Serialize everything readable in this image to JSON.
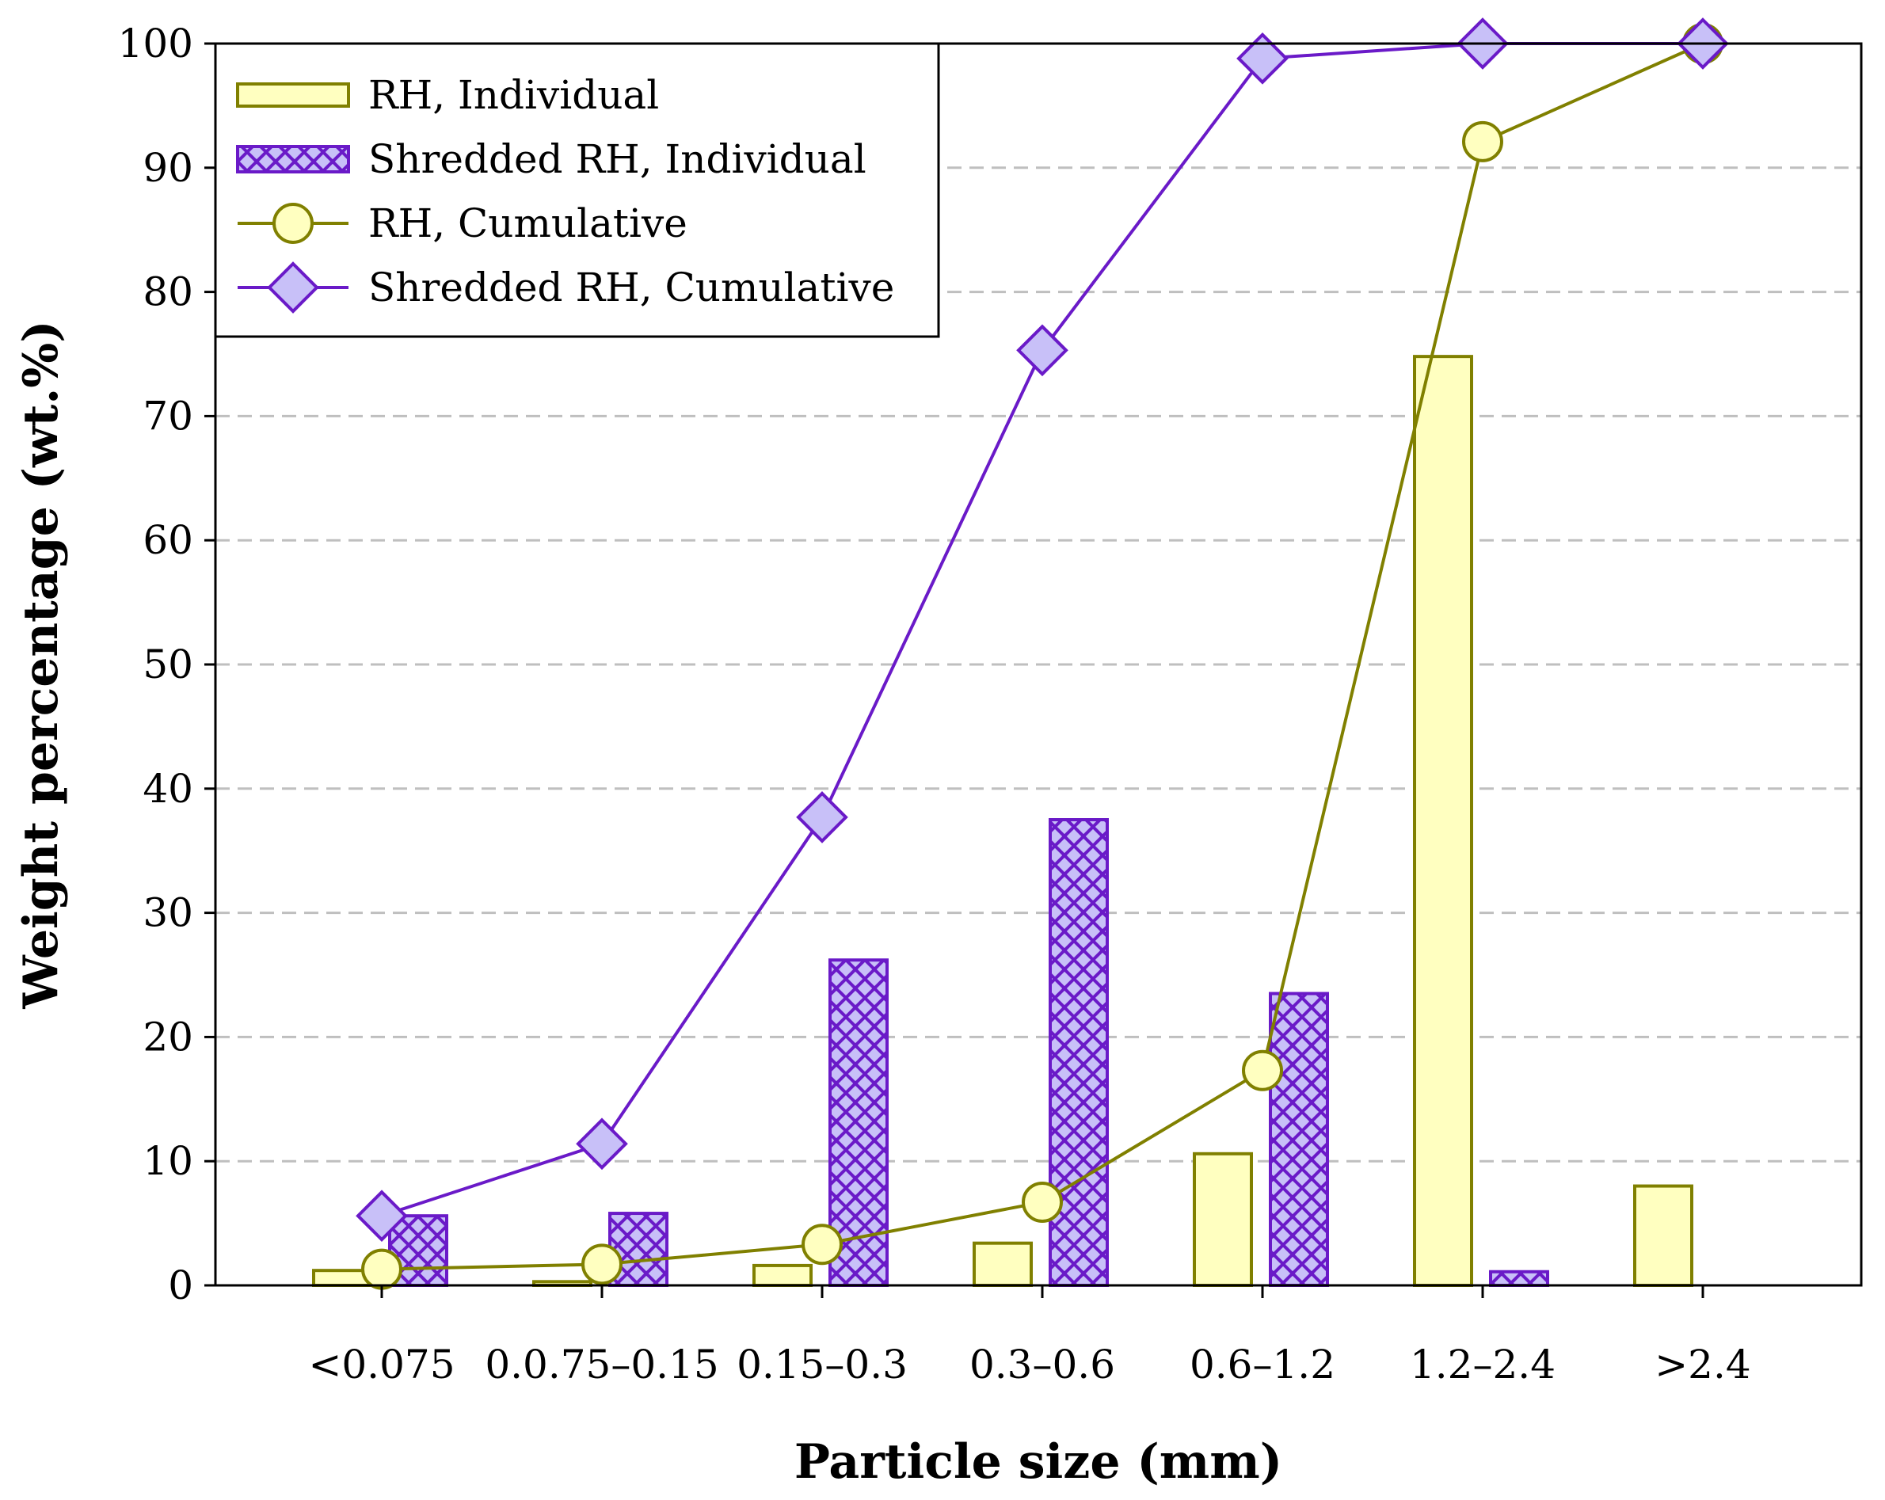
{
  "chart_data": {
    "type": "bar",
    "title": "",
    "xlabel": "Particle size (mm)",
    "ylabel": "Weight percentage (wt.%)",
    "ylim": [
      0,
      100
    ],
    "yticks": [
      "0",
      "10",
      "20",
      "30",
      "40",
      "50",
      "60",
      "70",
      "80",
      "90",
      "100"
    ],
    "categories": [
      "<0.075",
      "0.0.75–0.15",
      "0.15–0.3",
      "0.3–0.6",
      "0.6–1.2",
      "1.2–2.4",
      ">2.4"
    ],
    "grid": "horizontal dashed",
    "legend_position": "top-left",
    "series": [
      {
        "name": "RH, Individual",
        "kind": "bar",
        "values": [
          1.2,
          0.3,
          1.6,
          3.4,
          10.6,
          74.8,
          8.0
        ],
        "fill": "#ffffc0",
        "stroke": "#808000"
      },
      {
        "name": "Shredded RH, Individual",
        "kind": "bar-hatched",
        "values": [
          5.6,
          5.8,
          26.2,
          37.5,
          23.5,
          1.1,
          0
        ],
        "fill": "#c8c0f8",
        "stroke": "#6a1ac8"
      },
      {
        "name": "RH, Cumulative",
        "kind": "line-circle",
        "values": [
          1.3,
          1.7,
          3.3,
          6.7,
          17.3,
          92.1,
          100
        ],
        "fill": "#ffffc0",
        "stroke": "#808000"
      },
      {
        "name": "Shredded RH, Cumulative",
        "kind": "line-diamond",
        "values": [
          5.6,
          11.4,
          37.7,
          75.3,
          98.8,
          100,
          100
        ],
        "fill": "#c8c0f8",
        "stroke": "#6a1ac8"
      }
    ]
  }
}
